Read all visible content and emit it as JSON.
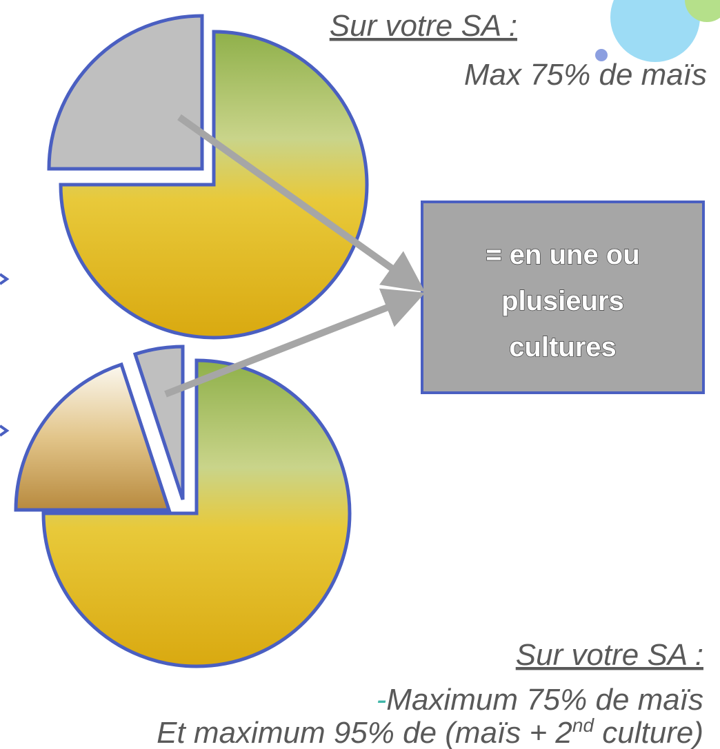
{
  "top_note": {
    "heading": "Sur votre SA :",
    "line": "Max 75% de maïs"
  },
  "box": {
    "lines": [
      "= en une ou",
      "plusieurs",
      "cultures"
    ]
  },
  "bottom_note": {
    "heading": "Sur votre SA :",
    "dash": "-",
    "line1": "Maximum 75% de maïs",
    "line2_start": "Et maximum 95% de (maïs + 2",
    "line2_sup": "nd",
    "line2_end": " culture)"
  }
}
